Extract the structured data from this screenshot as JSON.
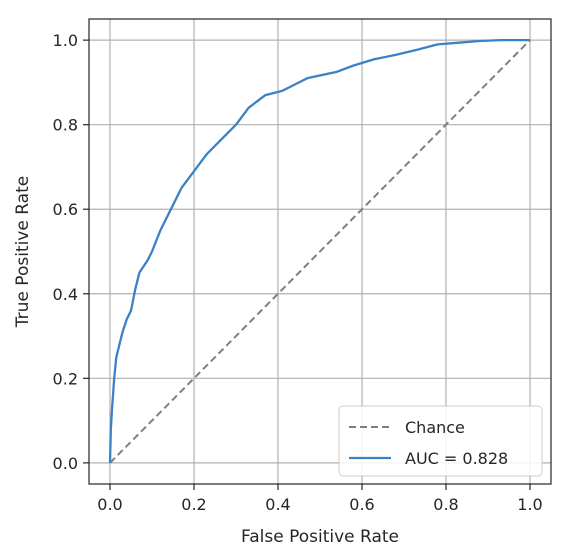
{
  "chart_data": {
    "type": "line",
    "title": "",
    "xlabel": "False Positive Rate",
    "ylabel": "True Positive Rate",
    "xlim": [
      -0.05,
      1.05
    ],
    "ylim": [
      -0.05,
      1.05
    ],
    "xticks": [
      "0.0",
      "0.2",
      "0.4",
      "0.6",
      "0.8",
      "1.0"
    ],
    "yticks": [
      "0.0",
      "0.2",
      "0.4",
      "0.6",
      "0.8",
      "1.0"
    ],
    "grid": true,
    "legend_position": "lower-right",
    "series": [
      {
        "name": "Chance",
        "style": "dashed",
        "color": "#7f7f7f",
        "x": [
          0,
          1
        ],
        "y": [
          0,
          1
        ]
      },
      {
        "name": "AUC = 0.828",
        "style": "solid",
        "color": "#3b82c4",
        "x": [
          0,
          0.002,
          0.005,
          0.01,
          0.015,
          0.02,
          0.03,
          0.04,
          0.05,
          0.06,
          0.07,
          0.09,
          0.1,
          0.12,
          0.15,
          0.17,
          0.2,
          0.23,
          0.26,
          0.3,
          0.33,
          0.37,
          0.41,
          0.44,
          0.47,
          0.54,
          0.58,
          0.63,
          0.68,
          0.73,
          0.78,
          0.83,
          0.88,
          0.93,
          1.0
        ],
        "y": [
          0,
          0.08,
          0.13,
          0.2,
          0.25,
          0.27,
          0.31,
          0.34,
          0.36,
          0.41,
          0.45,
          0.48,
          0.5,
          0.55,
          0.61,
          0.65,
          0.69,
          0.73,
          0.76,
          0.8,
          0.84,
          0.87,
          0.88,
          0.895,
          0.91,
          0.925,
          0.94,
          0.955,
          0.965,
          0.977,
          0.99,
          0.994,
          0.998,
          1.0,
          1.0
        ]
      }
    ]
  }
}
